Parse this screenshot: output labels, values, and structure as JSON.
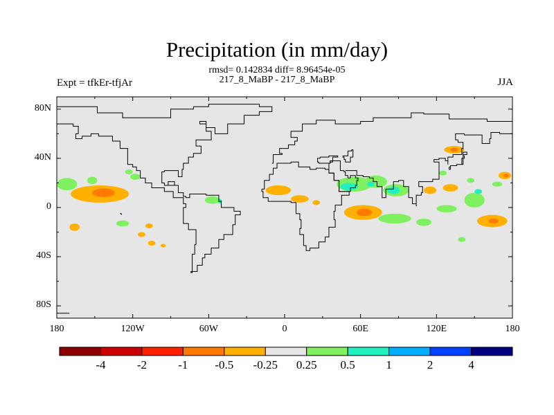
{
  "chart_data": {
    "type": "heatmap",
    "title": "Precipitation (in mm/day)",
    "subtitle_lines": [
      "rmsd= 0.142834 diff= 8.96454e-05",
      "217_8_MaBP - 217_8_MaBP"
    ],
    "left_label": "Expt = tfkEr-tfjAr",
    "right_label": "JJA",
    "xlim": [
      -180,
      180
    ],
    "ylim": [
      -90,
      90
    ],
    "x_ticks": [
      {
        "value": -180,
        "label": "180"
      },
      {
        "value": -120,
        "label": "120W"
      },
      {
        "value": -60,
        "label": "60W"
      },
      {
        "value": 0,
        "label": "0"
      },
      {
        "value": 60,
        "label": "60E"
      },
      {
        "value": 120,
        "label": "120E"
      },
      {
        "value": 180,
        "label": "180"
      }
    ],
    "y_ticks": [
      {
        "value": 80,
        "label": "80N"
      },
      {
        "value": 40,
        "label": "40N"
      },
      {
        "value": 0,
        "label": "0"
      },
      {
        "value": -40,
        "label": "40S"
      },
      {
        "value": -80,
        "label": "80S"
      }
    ],
    "colorbar": {
      "colors": [
        "#8b0000",
        "#cd0000",
        "#ff2000",
        "#ff7a00",
        "#ffb000",
        "#e6e6e6",
        "#7ff060",
        "#20f0c0",
        "#00b0ff",
        "#0040ff",
        "#000080"
      ],
      "labels": [
        "-4",
        "-2",
        "-1",
        "-0.5",
        "-0.25",
        "0.25",
        "0.5",
        "1",
        "2",
        "4"
      ]
    },
    "blobs": [
      {
        "lon": -146,
        "lat": 11,
        "rx": 23,
        "ry": 7,
        "color": "#ffb000"
      },
      {
        "lon": -143,
        "lat": 12,
        "rx": 9,
        "ry": 3.5,
        "color": "#ff7a00"
      },
      {
        "lon": -172,
        "lat": 19,
        "rx": 8,
        "ry": 5,
        "color": "#7ff060"
      },
      {
        "lon": -152,
        "lat": 22,
        "rx": 4,
        "ry": 3,
        "color": "#7ff060"
      },
      {
        "lon": -118,
        "lat": 25,
        "rx": 4,
        "ry": 2.5,
        "color": "#7ff060"
      },
      {
        "lon": -123,
        "lat": 29,
        "rx": 3,
        "ry": 2,
        "color": "#7ff060"
      },
      {
        "lon": -166,
        "lat": -16,
        "rx": 4,
        "ry": 3,
        "color": "#ffb000"
      },
      {
        "lon": -128,
        "lat": -13,
        "rx": 5,
        "ry": 2.5,
        "color": "#7ff060"
      },
      {
        "lon": -107,
        "lat": -15,
        "rx": 3,
        "ry": 2,
        "color": "#ffb000"
      },
      {
        "lon": -113,
        "lat": -22,
        "rx": 3,
        "ry": 2,
        "color": "#ffb000"
      },
      {
        "lon": -105,
        "lat": -29,
        "rx": 3,
        "ry": 2,
        "color": "#ffb000"
      },
      {
        "lon": -96,
        "lat": -31,
        "rx": 2,
        "ry": 1.5,
        "color": "#ffb000"
      },
      {
        "lon": -57,
        "lat": 6,
        "rx": 6,
        "ry": 3,
        "color": "#7ff060"
      },
      {
        "lon": -51,
        "lat": 5,
        "rx": 1.5,
        "ry": 2,
        "color": "#20f0c0"
      },
      {
        "lon": -5,
        "lat": 14,
        "rx": 10,
        "ry": 4,
        "color": "#ffb000"
      },
      {
        "lon": 12,
        "lat": 7,
        "rx": 7,
        "ry": 3,
        "color": "#ffb000"
      },
      {
        "lon": 25,
        "lat": 4,
        "rx": 3,
        "ry": 2,
        "color": "#ffb000"
      },
      {
        "lon": 62,
        "lat": -4,
        "rx": 15,
        "ry": 6,
        "color": "#ffb000"
      },
      {
        "lon": 63,
        "lat": -4,
        "rx": 6,
        "ry": 3,
        "color": "#ff7a00"
      },
      {
        "lon": 87,
        "lat": -9,
        "rx": 13,
        "ry": 4,
        "color": "#7ff060"
      },
      {
        "lon": 110,
        "lat": -12,
        "rx": 6,
        "ry": 3,
        "color": "#7ff060"
      },
      {
        "lon": 55,
        "lat": 19,
        "rx": 14,
        "ry": 6,
        "color": "#7ff060"
      },
      {
        "lon": 51,
        "lat": 17,
        "rx": 7,
        "ry": 3,
        "color": "#20f0c0"
      },
      {
        "lon": 72,
        "lat": 21,
        "rx": 9,
        "ry": 5,
        "color": "#7ff060"
      },
      {
        "lon": 68,
        "lat": 19,
        "rx": 3,
        "ry": 2,
        "color": "#20f0c0"
      },
      {
        "lon": 88,
        "lat": 14,
        "rx": 10,
        "ry": 5,
        "color": "#7ff060"
      },
      {
        "lon": 86,
        "lat": 14,
        "rx": 5,
        "ry": 3,
        "color": "#20f0c0"
      },
      {
        "lon": 115,
        "lat": 14,
        "rx": 5,
        "ry": 3,
        "color": "#ffb000"
      },
      {
        "lon": 131,
        "lat": 16,
        "rx": 6,
        "ry": 3,
        "color": "#ffb000"
      },
      {
        "lon": 125,
        "lat": 28,
        "rx": 3,
        "ry": 2,
        "color": "#7ff060"
      },
      {
        "lon": 134,
        "lat": 47,
        "rx": 8,
        "ry": 3,
        "color": "#ffb000"
      },
      {
        "lon": 134,
        "lat": 47,
        "rx": 3,
        "ry": 1.5,
        "color": "#ff7a00"
      },
      {
        "lon": 150,
        "lat": 6,
        "rx": 8,
        "ry": 6,
        "color": "#7ff060"
      },
      {
        "lon": 153,
        "lat": 13,
        "rx": 3,
        "ry": 2,
        "color": "#20f0c0"
      },
      {
        "lon": 128,
        "lat": -1,
        "rx": 8,
        "ry": 3,
        "color": "#7ff060"
      },
      {
        "lon": 164,
        "lat": -11,
        "rx": 12,
        "ry": 5,
        "color": "#ffb000"
      },
      {
        "lon": 165,
        "lat": -11,
        "rx": 4,
        "ry": 2,
        "color": "#ff7a00"
      },
      {
        "lon": 174,
        "lat": 26,
        "rx": 5,
        "ry": 3,
        "color": "#ffb000"
      },
      {
        "lon": 175,
        "lat": 26,
        "rx": 2,
        "ry": 1.5,
        "color": "#ff7a00"
      },
      {
        "lon": 168,
        "lat": 19,
        "rx": 4,
        "ry": 2,
        "color": "#7ff060"
      },
      {
        "lon": 140,
        "lat": -26,
        "rx": 3,
        "ry": 2,
        "color": "#7ff060"
      },
      {
        "lon": 147,
        "lat": 22,
        "rx": 3,
        "ry": 2,
        "color": "#7ff060"
      }
    ],
    "coastline_outlines": [
      [
        [
          -180,
          82
        ],
        [
          -150,
          82
        ],
        [
          -148,
          77
        ],
        [
          -135,
          77
        ],
        [
          -128,
          73
        ],
        [
          -95,
          73
        ],
        [
          -90,
          80
        ],
        [
          -72,
          82
        ],
        [
          -60,
          84
        ],
        [
          -40,
          84
        ],
        [
          -20,
          82
        ],
        [
          -10,
          82
        ],
        [
          -10,
          78
        ],
        [
          -20,
          75
        ],
        [
          -32,
          68
        ],
        [
          -45,
          60
        ],
        [
          -55,
          65
        ],
        [
          -62,
          70
        ],
        [
          -67,
          68
        ],
        [
          -62,
          62
        ],
        [
          -58,
          55
        ],
        [
          -70,
          50
        ],
        [
          -66,
          44
        ],
        [
          -72,
          41
        ],
        [
          -76,
          36
        ],
        [
          -80,
          31
        ],
        [
          -81,
          25
        ],
        [
          -84,
          30
        ],
        [
          -90,
          30
        ],
        [
          -95,
          29
        ],
        [
          -97,
          24
        ],
        [
          -97,
          20
        ],
        [
          -95,
          18
        ],
        [
          -88,
          18
        ],
        [
          -87,
          21
        ],
        [
          -90,
          21
        ],
        [
          -92,
          18
        ],
        [
          -84,
          12
        ],
        [
          -80,
          9
        ],
        [
          -78,
          8
        ],
        [
          -75,
          11
        ],
        [
          -62,
          10
        ],
        [
          -52,
          5
        ],
        [
          -50,
          0
        ],
        [
          -40,
          -3
        ],
        [
          -35,
          -6
        ],
        [
          -39,
          -14
        ],
        [
          -41,
          -22
        ],
        [
          -48,
          -26
        ],
        [
          -52,
          -33
        ],
        [
          -58,
          -38
        ],
        [
          -63,
          -41
        ],
        [
          -65,
          -47
        ],
        [
          -69,
          -52
        ],
        [
          -74,
          -53
        ],
        [
          -73,
          -45
        ],
        [
          -73,
          -38
        ],
        [
          -71,
          -30
        ],
        [
          -70,
          -18
        ],
        [
          -76,
          -13
        ],
        [
          -80,
          -5
        ],
        [
          -80,
          0
        ],
        [
          -78,
          3
        ],
        [
          -80,
          8
        ],
        [
          -88,
          13
        ],
        [
          -95,
          16
        ],
        [
          -105,
          20
        ],
        [
          -110,
          24
        ],
        [
          -114,
          30
        ],
        [
          -117,
          33
        ],
        [
          -120,
          35
        ],
        [
          -124,
          40
        ],
        [
          -124,
          48
        ],
        [
          -130,
          54
        ],
        [
          -136,
          58
        ],
        [
          -147,
          60
        ],
        [
          -153,
          58
        ],
        [
          -160,
          56
        ],
        [
          -165,
          60
        ],
        [
          -163,
          66
        ],
        [
          -167,
          68
        ],
        [
          -180,
          70
        ]
      ],
      [
        [
          -170,
          -86
        ],
        [
          -180,
          -86
        ]
      ],
      [
        [
          -18,
          15
        ],
        [
          -16,
          22
        ],
        [
          -12,
          27
        ],
        [
          -9,
          32
        ],
        [
          -6,
          36
        ],
        [
          5,
          37
        ],
        [
          10,
          37
        ],
        [
          11,
          33
        ],
        [
          20,
          31
        ],
        [
          25,
          32
        ],
        [
          32,
          31
        ],
        [
          35,
          28
        ],
        [
          39,
          22
        ],
        [
          43,
          13
        ],
        [
          51,
          12
        ],
        [
          51,
          10
        ],
        [
          45,
          2
        ],
        [
          40,
          -3
        ],
        [
          39,
          -10
        ],
        [
          40,
          -16
        ],
        [
          35,
          -24
        ],
        [
          32,
          -28
        ],
        [
          27,
          -33
        ],
        [
          20,
          -35
        ],
        [
          17,
          -31
        ],
        [
          15,
          -22
        ],
        [
          12,
          -17
        ],
        [
          13,
          -10
        ],
        [
          12,
          -5
        ],
        [
          9,
          -1
        ],
        [
          9,
          4
        ],
        [
          5,
          5
        ],
        [
          -2,
          5
        ],
        [
          -8,
          5
        ],
        [
          -13,
          8
        ],
        [
          -17,
          13
        ],
        [
          -18,
          15
        ]
      ],
      [
        [
          -10,
          36
        ],
        [
          -9,
          43
        ],
        [
          -2,
          44
        ],
        [
          -4,
          48
        ],
        [
          3,
          51
        ],
        [
          8,
          54
        ],
        [
          10,
          57
        ],
        [
          5,
          59
        ],
        [
          5,
          62
        ],
        [
          14,
          68
        ],
        [
          25,
          71
        ],
        [
          40,
          68
        ],
        [
          45,
          68
        ],
        [
          60,
          70
        ],
        [
          70,
          73
        ],
        [
          80,
          73
        ],
        [
          100,
          77
        ],
        [
          110,
          76
        ],
        [
          130,
          72
        ],
        [
          145,
          72
        ],
        [
          160,
          70
        ],
        [
          170,
          70
        ],
        [
          180,
          68
        ]
      ],
      [
        [
          28,
          41
        ],
        [
          35,
          42
        ],
        [
          42,
          41
        ],
        [
          38,
          37
        ],
        [
          36,
          36
        ],
        [
          32,
          36
        ],
        [
          27,
          37
        ],
        [
          26,
          40
        ],
        [
          28,
          41
        ]
      ],
      [
        [
          35,
          36
        ],
        [
          35,
          32
        ],
        [
          35,
          28
        ],
        [
          39,
          22
        ],
        [
          43,
          13
        ],
        [
          45,
          13
        ],
        [
          52,
          16
        ],
        [
          56,
          18
        ],
        [
          57,
          22
        ],
        [
          58,
          24
        ],
        [
          56,
          26
        ],
        [
          52,
          24
        ],
        [
          50,
          26
        ],
        [
          48,
          29
        ],
        [
          47,
          30
        ],
        [
          44,
          38
        ],
        [
          36,
          36
        ]
      ],
      [
        [
          48,
          30
        ],
        [
          57,
          26
        ],
        [
          62,
          25
        ],
        [
          67,
          24
        ],
        [
          70,
          21
        ],
        [
          73,
          17
        ],
        [
          77,
          8
        ],
        [
          80,
          10
        ],
        [
          80,
          15
        ],
        [
          86,
          21
        ],
        [
          90,
          22
        ],
        [
          94,
          17
        ],
        [
          98,
          16
        ],
        [
          98,
          8
        ],
        [
          101,
          3
        ],
        [
          104,
          1
        ],
        [
          104,
          10
        ],
        [
          108,
          12
        ],
        [
          109,
          17
        ],
        [
          106,
          21
        ],
        [
          110,
          21
        ],
        [
          117,
          23
        ],
        [
          122,
          30
        ],
        [
          122,
          37
        ],
        [
          118,
          39
        ],
        [
          122,
          40
        ],
        [
          127,
          38
        ],
        [
          129,
          35
        ],
        [
          129,
          41
        ],
        [
          133,
          43
        ],
        [
          140,
          48
        ],
        [
          141,
          53
        ],
        [
          137,
          55
        ],
        [
          135,
          60
        ],
        [
          142,
          59
        ],
        [
          152,
          59
        ],
        [
          156,
          52
        ],
        [
          162,
          56
        ],
        [
          163,
          61
        ],
        [
          170,
          60
        ],
        [
          180,
          62
        ]
      ],
      [
        [
          46,
          42
        ],
        [
          50,
          46
        ],
        [
          53,
          47
        ],
        [
          54,
          41
        ],
        [
          52,
          37
        ],
        [
          50,
          37
        ],
        [
          48,
          39
        ],
        [
          47,
          41
        ],
        [
          46,
          42
        ]
      ],
      [
        [
          130,
          33
        ],
        [
          131,
          34
        ],
        [
          136,
          35
        ],
        [
          140,
          36
        ],
        [
          140,
          40
        ],
        [
          142,
          42
        ],
        [
          141,
          45
        ],
        [
          144,
          43
        ],
        [
          141,
          38
        ],
        [
          141,
          35
        ],
        [
          136,
          34
        ],
        [
          131,
          31
        ],
        [
          130,
          33
        ]
      ],
      [
        [
          -130,
          -5
        ],
        [
          -129,
          -6
        ]
      ]
    ]
  }
}
